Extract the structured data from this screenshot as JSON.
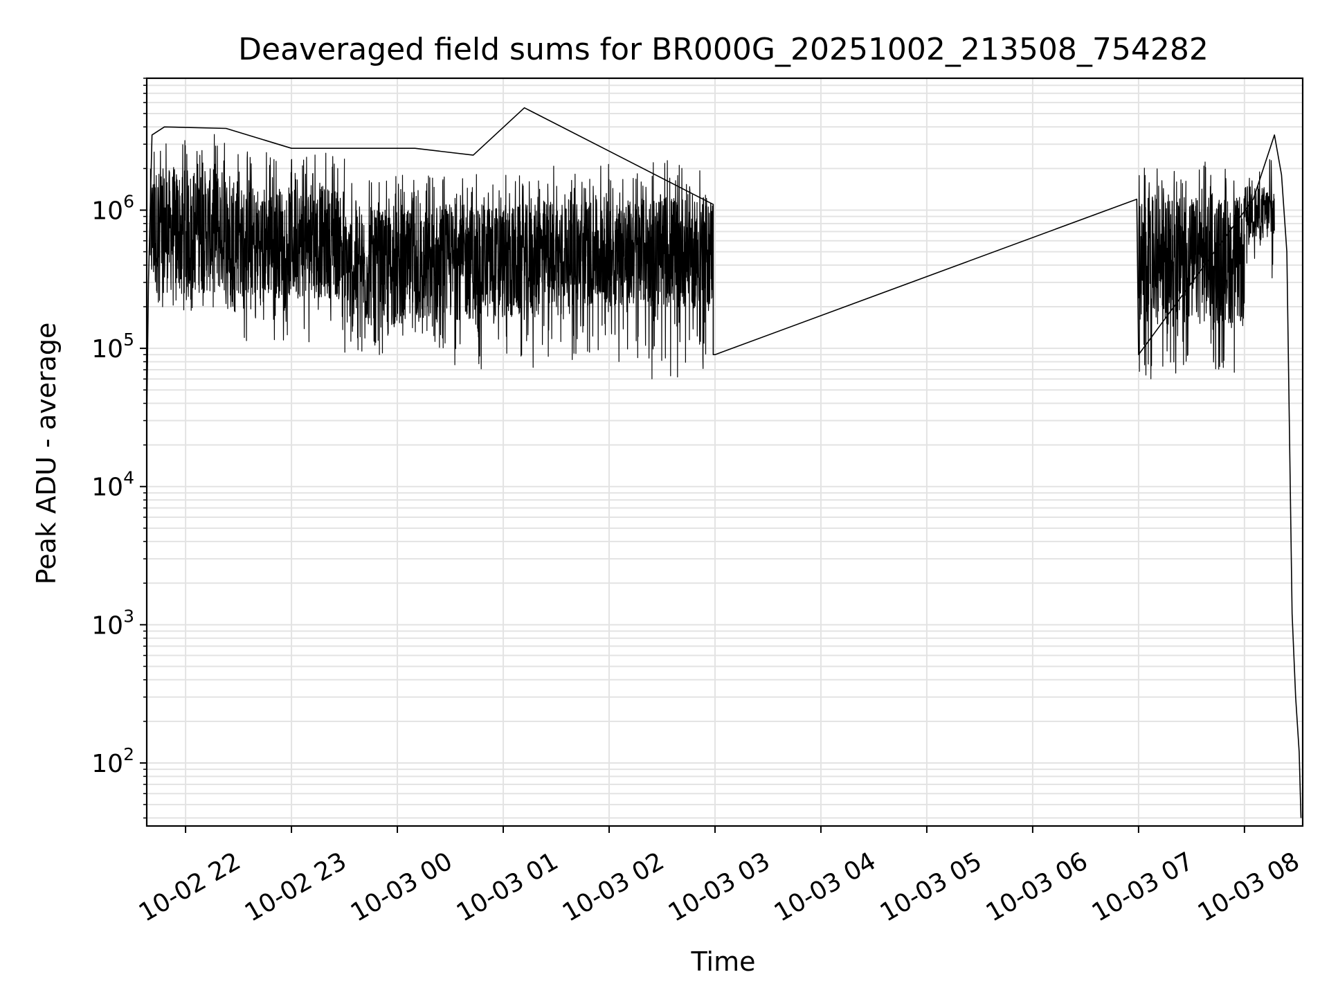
{
  "chart_data": {
    "type": "line",
    "title": "Deaveraged field sums for BR000G_20251002_213508_754282",
    "xlabel": "Time",
    "ylabel": "Peak ADU - average",
    "x_ticks": [
      "10-02 22",
      "10-02 23",
      "10-03 00",
      "10-03 01",
      "10-03 02",
      "10-03 03",
      "10-03 04",
      "10-03 05",
      "10-03 06",
      "10-03 07",
      "10-03 08"
    ],
    "y_ticks": [
      {
        "base": "10",
        "exp": "2"
      },
      {
        "base": "10",
        "exp": "3"
      },
      {
        "base": "10",
        "exp": "4"
      },
      {
        "base": "10",
        "exp": "5"
      },
      {
        "base": "10",
        "exp": "6"
      }
    ],
    "xlim": [
      "2025-10-02 21:38",
      "2025-10-03 08:33"
    ],
    "ylim": [
      35,
      9000000
    ],
    "yscale": "log",
    "grid": true,
    "line_color": "#000000",
    "grid_color": "#e3e3e3",
    "series": [
      {
        "name": "",
        "points": [
          [
            "2025-10-02 21:38",
            30000
          ],
          [
            "2025-10-02 21:39",
            300000
          ],
          [
            "2025-10-02 21:41",
            3500000
          ],
          [
            "2025-10-02 21:48",
            4000000
          ],
          [
            "2025-10-02 22:23",
            3900000
          ],
          [
            "2025-10-02 23:00",
            2800000
          ],
          [
            "2025-10-03 00:10",
            2800000
          ],
          [
            "2025-10-03 00:43",
            2500000
          ],
          [
            "2025-10-03 01:12",
            5500000
          ],
          [
            "2025-10-03 02:59",
            1100000
          ],
          [
            "2025-10-03 02:59",
            90000
          ],
          [
            "2025-10-03 03:00",
            90000
          ],
          [
            "2025-10-03 06:59",
            1200000
          ],
          [
            "2025-10-03 07:00",
            90000
          ],
          [
            "2025-10-03 08:05",
            1200000
          ],
          [
            "2025-10-03 08:17",
            3500000
          ],
          [
            "2025-10-03 08:21",
            1800000
          ],
          [
            "2025-10-03 08:24",
            500000
          ],
          [
            "2025-10-03 08:27",
            1200
          ],
          [
            "2025-10-03 08:29",
            300
          ],
          [
            "2025-10-03 08:31",
            120
          ],
          [
            "2025-10-03 08:32",
            40
          ]
        ]
      }
    ],
    "segments": [
      {
        "start": "2025-10-02 21:40",
        "end": "2025-10-02 22:30",
        "upper": 2000000,
        "lower": 250000,
        "min": 180000
      },
      {
        "start": "2025-10-02 22:30",
        "end": "2025-10-02 23:30",
        "upper": 1500000,
        "lower": 230000,
        "min": 110000
      },
      {
        "start": "2025-10-02 23:30",
        "end": "2025-10-03 00:30",
        "upper": 1000000,
        "lower": 140000,
        "min": 90000
      },
      {
        "start": "2025-10-03 00:30",
        "end": "2025-10-03 01:20",
        "upper": 1100000,
        "lower": 160000,
        "min": 70000
      },
      {
        "start": "2025-10-03 01:20",
        "end": "2025-10-03 02:20",
        "upper": 1200000,
        "lower": 200000,
        "min": 80000
      },
      {
        "start": "2025-10-03 02:20",
        "end": "2025-10-03 02:59",
        "upper": 1300000,
        "lower": 200000,
        "min": 60000
      },
      {
        "start": "2025-10-03 07:00",
        "end": "2025-10-03 08:00",
        "upper": 1250000,
        "lower": 150000,
        "min": 60000
      },
      {
        "start": "2025-10-03 08:00",
        "end": "2025-10-03 08:17",
        "upper": 1500000,
        "lower": 600000,
        "min": 300000
      }
    ]
  }
}
